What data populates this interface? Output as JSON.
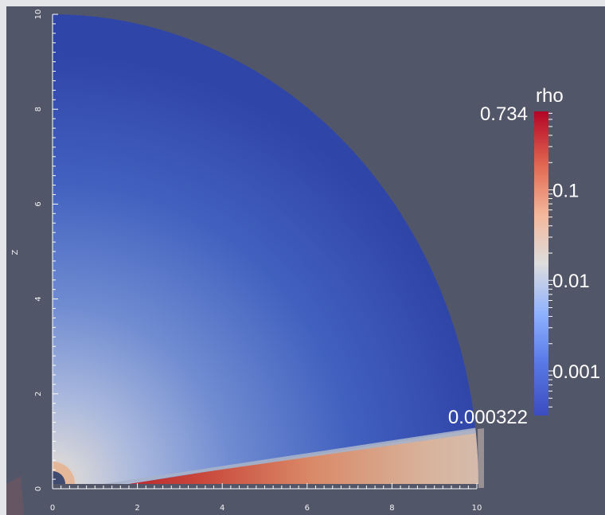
{
  "viewport": {
    "background": "#525669",
    "field_name": "rho"
  },
  "axes": {
    "z_label": "Z",
    "z_ticks": [
      "0",
      "2",
      "4",
      "6",
      "8",
      "10"
    ],
    "x_ticks": [
      "0",
      "2",
      "4",
      "6",
      "8",
      "10"
    ],
    "x_range": [
      0,
      10
    ],
    "z_range": [
      0,
      10
    ]
  },
  "colorbar": {
    "title": "rho",
    "max_label": "0.734",
    "min_label": "0.000322",
    "tick_labels": [
      "0.1",
      "0.01",
      "0.001"
    ],
    "scale": "log",
    "range": [
      0.000322,
      0.734
    ],
    "colors": {
      "low": "#3b4cc0",
      "mid": "#dddddd",
      "high": "#b40426"
    }
  }
}
